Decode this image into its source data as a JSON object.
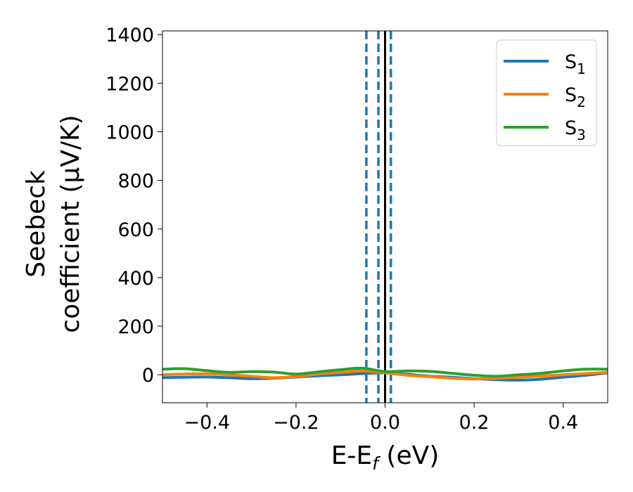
{
  "chart_data": {
    "type": "line",
    "xlabel": "E-E_f (eV)",
    "ylabel": [
      "Seebeck",
      "coefficient (μV/K)"
    ],
    "xlim": [
      -0.5,
      0.5
    ],
    "ylim": [
      -115,
      1415
    ],
    "xticks": [
      -0.4,
      -0.2,
      0.0,
      0.2,
      0.4
    ],
    "xtick_labels": [
      "−0.4",
      "−0.2",
      "0.0",
      "0.2",
      "0.4"
    ],
    "yticks": [
      0,
      200,
      400,
      600,
      800,
      1000,
      1200,
      1400
    ],
    "ytick_labels": [
      "0",
      "200",
      "400",
      "600",
      "800",
      "1000",
      "1200",
      "1400"
    ],
    "grid": false,
    "legend": {
      "position": "top-right"
    },
    "series": [
      {
        "name": "S1",
        "color": "#1f77b4",
        "x": [
          -0.5,
          -0.45,
          -0.4,
          -0.35,
          -0.3,
          -0.25,
          -0.2,
          -0.15,
          -0.1,
          -0.05,
          0.0,
          0.05,
          0.1,
          0.15,
          0.2,
          0.25,
          0.3,
          0.35,
          0.4,
          0.45,
          0.5
        ],
        "y": [
          -12,
          -10,
          -9,
          -12,
          -16,
          -14,
          -9,
          -4,
          0,
          5,
          8,
          2,
          -6,
          -10,
          -16,
          -20,
          -22,
          -18,
          -10,
          -2,
          8
        ]
      },
      {
        "name": "S2",
        "color": "#ff7f0e",
        "x": [
          -0.5,
          -0.45,
          -0.4,
          -0.35,
          -0.3,
          -0.25,
          -0.2,
          -0.15,
          -0.1,
          -0.05,
          0.0,
          0.05,
          0.1,
          0.15,
          0.2,
          0.25,
          0.3,
          0.35,
          0.4,
          0.45,
          0.5
        ],
        "y": [
          0,
          3,
          4,
          0,
          -6,
          -12,
          -7,
          3,
          10,
          16,
          8,
          -2,
          -8,
          -14,
          -17,
          -14,
          -10,
          -5,
          0,
          5,
          10
        ]
      },
      {
        "name": "S3",
        "color": "#2ca02c",
        "x": [
          -0.5,
          -0.45,
          -0.4,
          -0.35,
          -0.3,
          -0.25,
          -0.2,
          -0.15,
          -0.1,
          -0.05,
          0.0,
          0.05,
          0.1,
          0.15,
          0.2,
          0.25,
          0.3,
          0.35,
          0.4,
          0.45,
          0.5
        ],
        "y": [
          23,
          25,
          17,
          10,
          13,
          11,
          3,
          12,
          21,
          27,
          13,
          16,
          14,
          6,
          -2,
          -6,
          0,
          6,
          16,
          23,
          23
        ]
      }
    ],
    "vlines": [
      {
        "x": -0.042,
        "style": "dashed",
        "color": "#1f77b4"
      },
      {
        "x": -0.015,
        "style": "dashed",
        "color": "#1f77b4"
      },
      {
        "x": 0.013,
        "style": "dashed",
        "color": "#1f77b4"
      },
      {
        "x": 0.0,
        "style": "solid",
        "color": "#000000"
      }
    ]
  }
}
